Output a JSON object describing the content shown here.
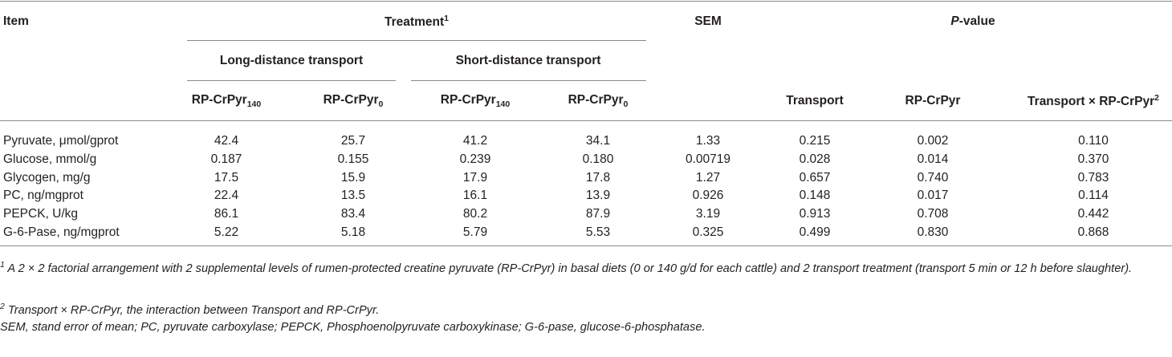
{
  "table": {
    "header": {
      "item": "Item",
      "treatment": {
        "text": "Treatment",
        "sup": "1"
      },
      "sem": "SEM",
      "p_value": {
        "italic": "P",
        "text": "-value"
      },
      "groups": [
        "Long-distance transport",
        "Short-distance transport"
      ],
      "treatments": [
        {
          "text": "RP-CrPyr",
          "sub": "140"
        },
        {
          "text": "RP-CrPyr",
          "sub": "0"
        },
        {
          "text": "RP-CrPyr",
          "sub": "140"
        },
        {
          "text": "RP-CrPyr",
          "sub": "0"
        }
      ],
      "p_columns": [
        {
          "text": "Transport"
        },
        {
          "text": "RP-CrPyr"
        },
        {
          "text": "Transport × RP-CrPyr",
          "sup": "2"
        }
      ]
    },
    "rows": [
      [
        "Pyruvate, μmol/gprot",
        "42.4",
        "25.7",
        "41.2",
        "34.1",
        "1.33",
        "0.215",
        "0.002",
        "0.110"
      ],
      [
        "Glucose, mmol/g",
        "0.187",
        "0.155",
        "0.239",
        "0.180",
        "0.00719",
        "0.028",
        "0.014",
        "0.370"
      ],
      [
        "Glycogen, mg/g",
        "17.5",
        "15.9",
        "17.9",
        "17.8",
        "1.27",
        "0.657",
        "0.740",
        "0.783"
      ],
      [
        "PC, ng/mgprot",
        "22.4",
        "13.5",
        "16.1",
        "13.9",
        "0.926",
        "0.148",
        "0.017",
        "0.114"
      ],
      [
        "PEPCK, U/kg",
        "86.1",
        "83.4",
        "80.2",
        "87.9",
        "3.19",
        "0.913",
        "0.708",
        "0.442"
      ],
      [
        "G-6-Pase, ng/mgprot",
        "5.22",
        "5.18",
        "5.79",
        "5.53",
        "0.325",
        "0.499",
        "0.830",
        "0.868"
      ]
    ]
  },
  "footnotes": [
    {
      "sup": "1",
      "text": "A 2 × 2 factorial arrangement with 2 supplemental levels of rumen-protected creatine pyruvate (RP-CrPyr) in basal diets (0 or 140 g/d for each cattle) and 2 transport treatment (transport 5 min or 12 h before slaughter)."
    },
    {
      "sup": "2",
      "text": "Transport × RP-CrPyr, the interaction between Transport and RP-CrPyr."
    },
    {
      "text": "SEM, stand error of mean; PC, pyruvate carboxylase; PEPCK, Phosphoenolpyruvate carboxykinase; G-6-pase, glucose-6-phosphatase."
    }
  ]
}
